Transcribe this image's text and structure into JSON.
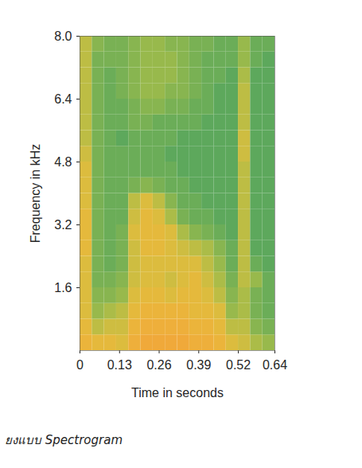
{
  "chart_data": {
    "type": "heatmap",
    "caption": "ยงแบบ Spectrogram",
    "x_label": "Time in seconds",
    "y_label": "Frequency in kHz",
    "xlim": [
      0,
      0.64
    ],
    "xticks": [
      0,
      0.13,
      0.26,
      0.39,
      0.52,
      0.64
    ],
    "ylim": [
      0,
      8
    ],
    "yticks": [
      1.6,
      3.2,
      4.8,
      6.4,
      {
        "value": 8,
        "label": "8.0"
      }
    ],
    "grid": false,
    "time_edges": [
      0,
      0.04,
      0.08,
      0.12,
      0.16,
      0.2,
      0.24,
      0.28,
      0.32,
      0.36,
      0.4,
      0.44,
      0.48,
      0.52,
      0.56,
      0.6,
      0.64
    ],
    "freq_edges": [
      0,
      0.4,
      0.8,
      1.2,
      1.6,
      2.0,
      2.4,
      2.8,
      3.2,
      3.6,
      4.0,
      4.4,
      4.8,
      5.2,
      5.6,
      6.0,
      6.4,
      6.8,
      7.2,
      7.6,
      8.0
    ],
    "cells": [
      [
        0.8,
        0.75,
        0.75,
        0.7,
        0.85,
        0.9,
        0.9,
        0.9,
        0.9,
        0.85,
        0.85,
        0.8,
        0.7,
        0.65,
        0.55,
        0.5
      ],
      [
        0.75,
        0.6,
        0.65,
        0.65,
        0.8,
        0.85,
        0.85,
        0.85,
        0.85,
        0.8,
        0.8,
        0.75,
        0.6,
        0.6,
        0.45,
        0.4
      ],
      [
        0.7,
        0.5,
        0.55,
        0.6,
        0.75,
        0.8,
        0.8,
        0.8,
        0.8,
        0.75,
        0.75,
        0.7,
        0.5,
        0.55,
        0.4,
        0.35
      ],
      [
        0.7,
        0.45,
        0.45,
        0.5,
        0.7,
        0.75,
        0.75,
        0.7,
        0.75,
        0.75,
        0.7,
        0.6,
        0.45,
        0.55,
        0.4,
        0.35
      ],
      [
        0.7,
        0.4,
        0.4,
        0.45,
        0.65,
        0.7,
        0.7,
        0.65,
        0.7,
        0.75,
        0.65,
        0.55,
        0.4,
        0.6,
        0.5,
        0.35
      ],
      [
        0.7,
        0.4,
        0.35,
        0.4,
        0.65,
        0.7,
        0.7,
        0.7,
        0.7,
        0.7,
        0.6,
        0.5,
        0.35,
        0.6,
        0.35,
        0.3
      ],
      [
        0.75,
        0.4,
        0.35,
        0.4,
        0.65,
        0.75,
        0.75,
        0.7,
        0.65,
        0.6,
        0.55,
        0.45,
        0.35,
        0.6,
        0.3,
        0.3
      ],
      [
        0.75,
        0.4,
        0.35,
        0.4,
        0.7,
        0.75,
        0.75,
        0.7,
        0.55,
        0.45,
        0.4,
        0.35,
        0.3,
        0.6,
        0.3,
        0.3
      ],
      [
        0.75,
        0.4,
        0.35,
        0.35,
        0.65,
        0.75,
        0.7,
        0.55,
        0.4,
        0.35,
        0.35,
        0.3,
        0.3,
        0.6,
        0.3,
        0.3
      ],
      [
        0.7,
        0.4,
        0.35,
        0.35,
        0.6,
        0.7,
        0.6,
        0.45,
        0.35,
        0.35,
        0.3,
        0.3,
        0.3,
        0.6,
        0.3,
        0.3
      ],
      [
        0.7,
        0.4,
        0.35,
        0.35,
        0.4,
        0.45,
        0.4,
        0.35,
        0.35,
        0.3,
        0.3,
        0.3,
        0.3,
        0.6,
        0.3,
        0.3
      ],
      [
        0.7,
        0.4,
        0.35,
        0.35,
        0.35,
        0.35,
        0.35,
        0.35,
        0.3,
        0.3,
        0.3,
        0.3,
        0.3,
        0.6,
        0.3,
        0.3
      ],
      [
        0.65,
        0.4,
        0.35,
        0.35,
        0.35,
        0.35,
        0.35,
        0.3,
        0.3,
        0.3,
        0.3,
        0.3,
        0.3,
        0.65,
        0.3,
        0.3
      ],
      [
        0.6,
        0.4,
        0.35,
        0.3,
        0.35,
        0.35,
        0.35,
        0.35,
        0.3,
        0.3,
        0.3,
        0.3,
        0.3,
        0.65,
        0.3,
        0.3
      ],
      [
        0.6,
        0.4,
        0.35,
        0.35,
        0.4,
        0.4,
        0.35,
        0.35,
        0.35,
        0.35,
        0.3,
        0.3,
        0.3,
        0.6,
        0.3,
        0.3
      ],
      [
        0.6,
        0.4,
        0.35,
        0.35,
        0.4,
        0.45,
        0.45,
        0.4,
        0.4,
        0.35,
        0.35,
        0.3,
        0.3,
        0.6,
        0.3,
        0.3
      ],
      [
        0.6,
        0.4,
        0.35,
        0.4,
        0.45,
        0.5,
        0.5,
        0.45,
        0.45,
        0.4,
        0.35,
        0.3,
        0.3,
        0.6,
        0.3,
        0.3
      ],
      [
        0.6,
        0.4,
        0.35,
        0.4,
        0.45,
        0.5,
        0.5,
        0.5,
        0.45,
        0.4,
        0.35,
        0.35,
        0.3,
        0.55,
        0.3,
        0.3
      ],
      [
        0.6,
        0.4,
        0.4,
        0.4,
        0.45,
        0.5,
        0.5,
        0.5,
        0.45,
        0.4,
        0.35,
        0.35,
        0.35,
        0.5,
        0.35,
        0.3
      ],
      [
        0.6,
        0.45,
        0.4,
        0.4,
        0.45,
        0.5,
        0.5,
        0.45,
        0.45,
        0.4,
        0.4,
        0.35,
        0.35,
        0.5,
        0.35,
        0.35
      ]
    ]
  }
}
